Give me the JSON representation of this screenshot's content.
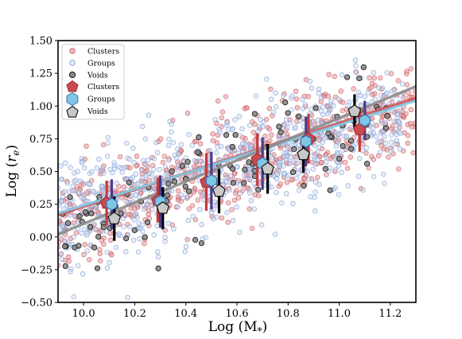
{
  "chart_data": {
    "type": "scatter",
    "xlabel": "Log (M",
    "xlabel_sub": "*",
    "xlabel_close": ")",
    "ylabel": "Log (",
    "ylabel_var": "r",
    "ylabel_sub": "e",
    "ylabel_close": ")",
    "xlim": [
      9.9,
      11.3
    ],
    "ylim": [
      -0.5,
      1.5
    ],
    "x_ticks": [
      "10.0",
      "10.2",
      "10.4",
      "10.6",
      "10.8",
      "11.0",
      "11.2"
    ],
    "y_ticks": [
      "−0.50",
      "−0.25",
      "0.00",
      "0.25",
      "0.50",
      "0.75",
      "1.00",
      "1.25",
      "1.50"
    ],
    "legend_position": "upper-left",
    "legend": [
      {
        "label": "Clusters",
        "marker": "circle-small",
        "color": "#d9888b"
      },
      {
        "label": "Groups",
        "marker": "circle-small",
        "color": "#9bb1dc"
      },
      {
        "label": "Voids",
        "marker": "circle-small",
        "color": "#777777"
      },
      {
        "label": "Clusters",
        "marker": "pentagon",
        "color": "#c94a4e"
      },
      {
        "label": "Groups",
        "marker": "hexagon",
        "color": "#7fc6e4"
      },
      {
        "label": "Voids",
        "marker": "pentagon",
        "color": "#c8c8c8"
      }
    ],
    "colors": {
      "clusters_points": "#e39b9e",
      "groups_points": "#a8bfe6",
      "voids_points": "#8a8a8a",
      "clusters_fit": "#d3585c",
      "groups_fit": "#7ccde8",
      "voids_fit": "#8c8c8c",
      "clusters_err": "#c13a3f",
      "groups_err": "#4b3b8c",
      "voids_err": "#000000"
    },
    "scatter_clouds": {
      "clusters": {
        "n": 650,
        "slope": 0.64,
        "x0": 10.0,
        "y0": 0.18,
        "scatter": 0.2,
        "xrange": [
          9.9,
          11.3
        ]
      },
      "groups": {
        "n": 750,
        "slope": 0.62,
        "x0": 10.0,
        "y0": 0.18,
        "scatter": 0.21,
        "xrange": [
          9.9,
          11.25
        ]
      },
      "voids": {
        "n": 110,
        "slope": 0.78,
        "x0": 10.0,
        "y0": 0.05,
        "scatter": 0.18,
        "xrange": [
          9.9,
          11.2
        ]
      }
    },
    "fit_lines": [
      {
        "name": "Clusters",
        "x": [
          9.9,
          11.3
        ],
        "y": [
          0.17,
          1.06
        ]
      },
      {
        "name": "Groups",
        "x": [
          9.9,
          11.3
        ],
        "y": [
          0.18,
          1.04
        ]
      },
      {
        "name": "Voids",
        "x": [
          9.9,
          11.3
        ],
        "y": [
          0.02,
          1.15
        ]
      }
    ],
    "binned": [
      {
        "name": "Clusters",
        "x": [
          10.09,
          10.29,
          10.48,
          10.68,
          10.88,
          11.08
        ],
        "y": [
          0.26,
          0.28,
          0.42,
          0.59,
          0.75,
          0.82
        ],
        "err": [
          0.17,
          0.17,
          0.22,
          0.2,
          0.19,
          0.17
        ]
      },
      {
        "name": "Groups",
        "x": [
          10.11,
          10.3,
          10.5,
          10.7,
          10.87,
          11.1
        ],
        "y": [
          0.25,
          0.27,
          0.43,
          0.56,
          0.73,
          0.89
        ],
        "err": [
          0.19,
          0.2,
          0.22,
          0.2,
          0.19,
          0.15
        ]
      },
      {
        "name": "Voids",
        "x": [
          10.12,
          10.31,
          10.53,
          10.72,
          10.86,
          11.06
        ],
        "y": [
          0.14,
          0.22,
          0.35,
          0.52,
          0.63,
          0.96
        ],
        "err": [
          0.17,
          0.16,
          0.17,
          0.19,
          0.14,
          0.13
        ]
      }
    ]
  }
}
